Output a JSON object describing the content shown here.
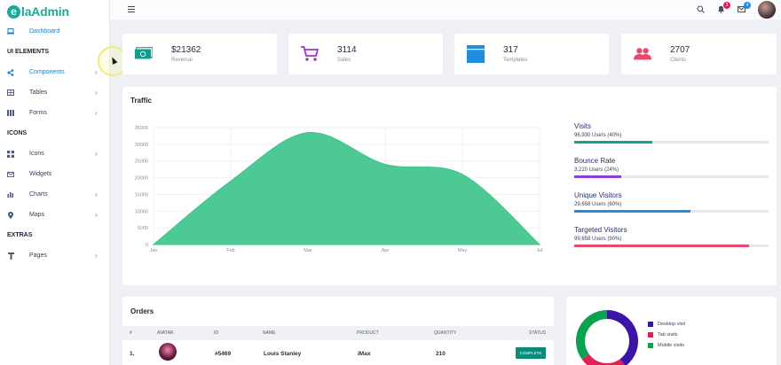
{
  "brand": {
    "logo_letter": "e",
    "name": "laAdmin"
  },
  "sidebar": {
    "dashboard": "Dashboard",
    "sections": {
      "ui": "UI ELEMENTS",
      "icons": "ICONS",
      "extras": "EXTRAS"
    },
    "items": {
      "components": "Components",
      "tables": "Tables",
      "forms": "Forms",
      "icons": "Icons",
      "widgets": "Widgets",
      "charts": "Charts",
      "maps": "Maps",
      "pages": "Pages"
    }
  },
  "topbar": {
    "notifications_count": "3",
    "messages_count": "4"
  },
  "stats": [
    {
      "value": "$21362",
      "label": "Revenue",
      "color": "#0e9e8b",
      "icon": "money-icon"
    },
    {
      "value": "3114",
      "label": "Sales",
      "color": "#a033c9",
      "icon": "cart-icon"
    },
    {
      "value": "317",
      "label": "Templates",
      "color": "#1f8de0",
      "icon": "browser-icon"
    },
    {
      "value": "2707",
      "label": "Clients",
      "color": "#ea4a6a",
      "icon": "users-icon"
    }
  ],
  "traffic": {
    "title": "Traffic",
    "metrics": [
      {
        "title": "Visits",
        "sub": "96,930 Users (40%)",
        "pct": 40,
        "color": "#17a28f"
      },
      {
        "title": "Bounce Rate",
        "sub": "3,220 Users (24%)",
        "pct": 24,
        "color": "#8a3fd0"
      },
      {
        "title": "Unique Visitors",
        "sub": "29,658 Users (60%)",
        "pct": 60,
        "color": "#1f8de0"
      },
      {
        "title": "Targeted Visitors",
        "sub": "99,658 Users (90%)",
        "pct": 90,
        "color": "#ea4a6a"
      }
    ]
  },
  "chart_data": {
    "type": "area",
    "categories": [
      "Jan",
      "Feb",
      "Mar",
      "Apr",
      "May",
      "Jul"
    ],
    "values": [
      0,
      19000,
      33500,
      24000,
      21000,
      0
    ],
    "yticks": [
      0,
      5000,
      10000,
      15000,
      20000,
      25000,
      30000,
      35000
    ],
    "ylim": [
      0,
      35000
    ],
    "color": "#3dc48b",
    "grid": true
  },
  "orders": {
    "title": "Orders",
    "columns": [
      "#",
      "AVATAR",
      "ID",
      "NAME",
      "PRODUCT",
      "QUANTITY",
      "STATUS"
    ],
    "rows": [
      {
        "num": "1.",
        "id": "#5469",
        "name": "Louis Stanley",
        "product": "iMax",
        "quantity": "210",
        "status": "COMPLETE"
      }
    ]
  },
  "devices": {
    "legend": [
      {
        "label": "Desktop visit",
        "color": "#3b14a8"
      },
      {
        "label": "Tab visits",
        "color": "#e0205a"
      },
      {
        "label": "Mobile visits",
        "color": "#0aa14f"
      }
    ],
    "shares": [
      40,
      25,
      35
    ]
  }
}
